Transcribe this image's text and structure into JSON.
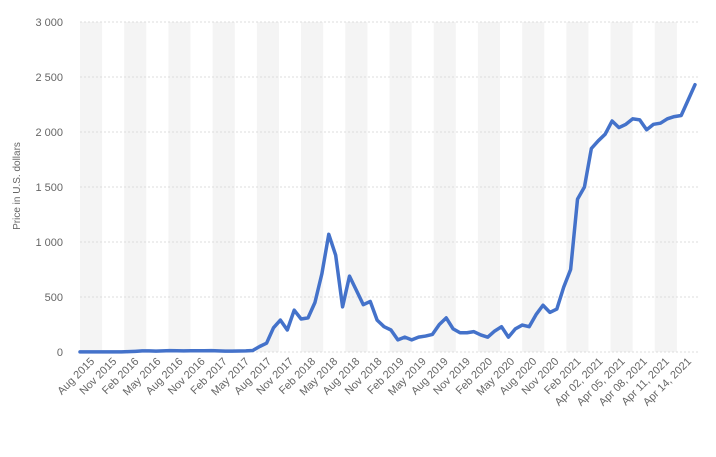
{
  "chart_data": {
    "type": "line",
    "ylabel": "Price in U.S. dollars",
    "ylim": [
      0,
      3000
    ],
    "yticks": [
      0,
      500,
      1000,
      1500,
      2000,
      2500,
      3000
    ],
    "ytick_labels": [
      "0",
      "500",
      "1 000",
      "1 500",
      "2 000",
      "2 500",
      "3 000"
    ],
    "grid": "alternating vertical bands",
    "line_color": "#4472ca",
    "xtick_labels": [
      "Aug 2015",
      "Nov 2015",
      "Feb 2016",
      "May 2016",
      "Aug 2016",
      "Nov 2016",
      "Feb 2017",
      "May 2017",
      "Aug 2017",
      "Nov 2017",
      "Feb 2018",
      "May 2018",
      "Aug 2018",
      "Nov 2018",
      "Feb 2019",
      "May 2019",
      "Aug 2019",
      "Nov 2019",
      "Feb 2020",
      "May 2020",
      "Aug 2020",
      "Nov 2020",
      "Feb 2021",
      "Apr 02, 2021",
      "Apr 05, 2021",
      "Apr 08, 2021",
      "Apr 11, 2021",
      "Apr 14, 2021"
    ],
    "values": [
      1,
      1,
      1,
      1,
      1,
      1,
      1,
      3,
      6,
      10,
      10,
      8,
      10,
      12,
      11,
      10,
      11,
      11,
      11,
      12,
      10,
      8,
      8,
      9,
      10,
      14,
      50,
      80,
      220,
      290,
      200,
      380,
      300,
      310,
      450,
      710,
      1070,
      880,
      410,
      690,
      560,
      430,
      460,
      290,
      230,
      200,
      110,
      135,
      110,
      135,
      145,
      160,
      250,
      310,
      210,
      175,
      175,
      185,
      155,
      135,
      190,
      230,
      135,
      210,
      245,
      230,
      340,
      425,
      360,
      390,
      590,
      750,
      1390,
      1500,
      1850,
      1920,
      1980,
      2100,
      2040,
      2070,
      2120,
      2110,
      2020,
      2070,
      2080,
      2120,
      2140,
      2150,
      2290,
      2430
    ]
  }
}
